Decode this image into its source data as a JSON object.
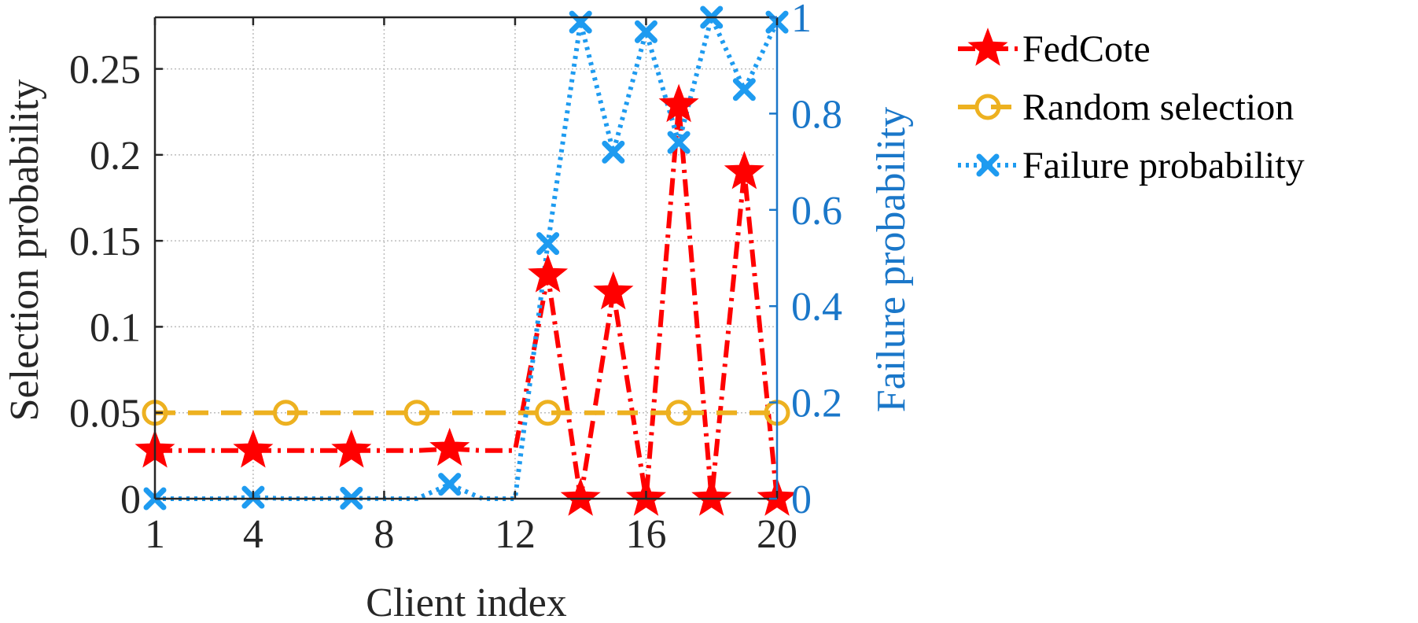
{
  "chart_data": {
    "type": "line",
    "xlabel": "Client index",
    "ylabel_left": "Selection probability",
    "ylabel_right": "Failure probability",
    "xlim": [
      1,
      20
    ],
    "ylim_left": [
      0,
      0.28
    ],
    "ylim_right": [
      0,
      1
    ],
    "x_ticks": [
      1,
      4,
      8,
      12,
      16,
      20
    ],
    "x_tick_labels": [
      "1",
      "4",
      "8",
      "12",
      "16",
      "20"
    ],
    "y_left_ticks": [
      0,
      0.05,
      0.1,
      0.15,
      0.2,
      0.25
    ],
    "y_left_tick_labels": [
      "0",
      "0.05",
      "0.1",
      "0.15",
      "0.2",
      "0.25"
    ],
    "y_right_ticks": [
      0,
      0.2,
      0.4,
      0.6,
      0.8,
      1
    ],
    "y_right_tick_labels": [
      "0",
      "0.2",
      "0.4",
      "0.6",
      "0.8",
      "1"
    ],
    "grid": true,
    "legend_position": "outside-right-top",
    "colors": {
      "fedcote": "#ff0000",
      "random": "#edb120",
      "failure": "#1e9bf0",
      "right_axis": "#1a77c9",
      "axis": "#262626",
      "grid": "#bdbdbd"
    },
    "series": [
      {
        "name": "FedCote",
        "axis": "left",
        "color": "#ff0000",
        "line_style": "dashdot",
        "marker": "star",
        "x": [
          1,
          2,
          3,
          4,
          5,
          6,
          7,
          8,
          9,
          10,
          11,
          12,
          13,
          14,
          15,
          16,
          17,
          18,
          19,
          20
        ],
        "values": [
          0.028,
          0.028,
          0.028,
          0.028,
          0.028,
          0.028,
          0.028,
          0.028,
          0.028,
          0.029,
          0.028,
          0.028,
          0.13,
          0,
          0.12,
          0,
          0.229,
          0,
          0.19,
          0
        ],
        "marker_x": [
          1,
          4,
          7,
          10,
          13,
          14,
          15,
          16,
          17,
          18,
          19,
          20
        ]
      },
      {
        "name": "Random selection",
        "axis": "left",
        "color": "#edb120",
        "line_style": "dashed",
        "marker": "circle",
        "x": [
          1,
          2,
          3,
          4,
          5,
          6,
          7,
          8,
          9,
          10,
          11,
          12,
          13,
          14,
          15,
          16,
          17,
          18,
          19,
          20
        ],
        "values": [
          0.05,
          0.05,
          0.05,
          0.05,
          0.05,
          0.05,
          0.05,
          0.05,
          0.05,
          0.05,
          0.05,
          0.05,
          0.05,
          0.05,
          0.05,
          0.05,
          0.05,
          0.05,
          0.05,
          0.05
        ],
        "marker_x": [
          1,
          5,
          9,
          13,
          17,
          20
        ]
      },
      {
        "name": "Failure probability",
        "axis": "right",
        "color": "#1e9bf0",
        "line_style": "dotted",
        "marker": "x",
        "x": [
          1,
          2,
          3,
          4,
          5,
          6,
          7,
          8,
          9,
          10,
          11,
          12,
          13,
          14,
          15,
          16,
          17,
          18,
          19,
          20
        ],
        "values": [
          0,
          0,
          0,
          0.003,
          0,
          0,
          0.001,
          0,
          0,
          0.03,
          0,
          0,
          0.53,
          0.99,
          0.72,
          0.97,
          0.74,
          1.0,
          0.85,
          0.99
        ],
        "marker_x": [
          1,
          4,
          7,
          10,
          13,
          14,
          15,
          16,
          17,
          18,
          19,
          20
        ]
      }
    ]
  }
}
